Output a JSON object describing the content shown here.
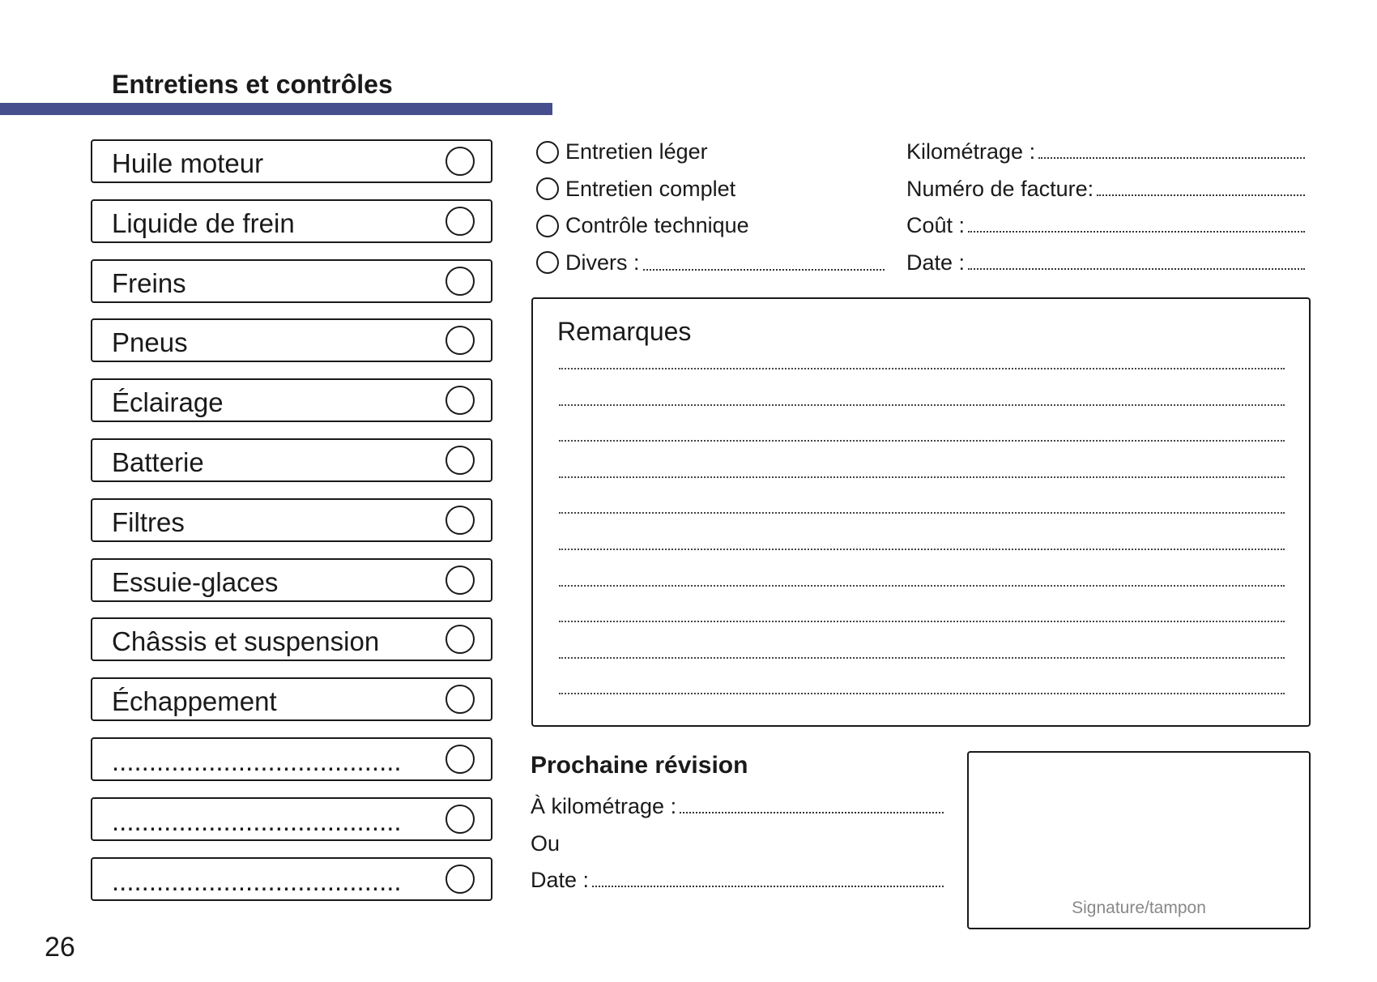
{
  "title": "Entretiens et contrôles",
  "accent_color": "#464e8d",
  "checklist": [
    {
      "label": "Huile moteur"
    },
    {
      "label": "Liquide de frein"
    },
    {
      "label": "Freins"
    },
    {
      "label": "Pneus"
    },
    {
      "label": "Éclairage"
    },
    {
      "label": "Batterie"
    },
    {
      "label": "Filtres"
    },
    {
      "label": "Essuie-glaces"
    },
    {
      "label": "Châssis et suspension"
    },
    {
      "label": "Échappement"
    },
    {
      "label": "......................................."
    },
    {
      "label": "......................................."
    },
    {
      "label": "......................................."
    }
  ],
  "service_types": [
    {
      "label": "Entretien léger"
    },
    {
      "label": "Entretien complet"
    },
    {
      "label": "Contrôle technique"
    },
    {
      "label": "Divers :"
    }
  ],
  "details": [
    {
      "label": "Kilométrage :"
    },
    {
      "label": "Numéro de facture:"
    },
    {
      "label": "Coût :"
    },
    {
      "label": "Date :"
    }
  ],
  "remarks": {
    "title": "Remarques",
    "line_count": 10
  },
  "next_service": {
    "title": "Prochaine révision",
    "mileage_label": "À kilométrage :",
    "or_label": "Ou",
    "date_label": "Date :"
  },
  "signature_label": "Signature/tampon",
  "page_number": "26"
}
